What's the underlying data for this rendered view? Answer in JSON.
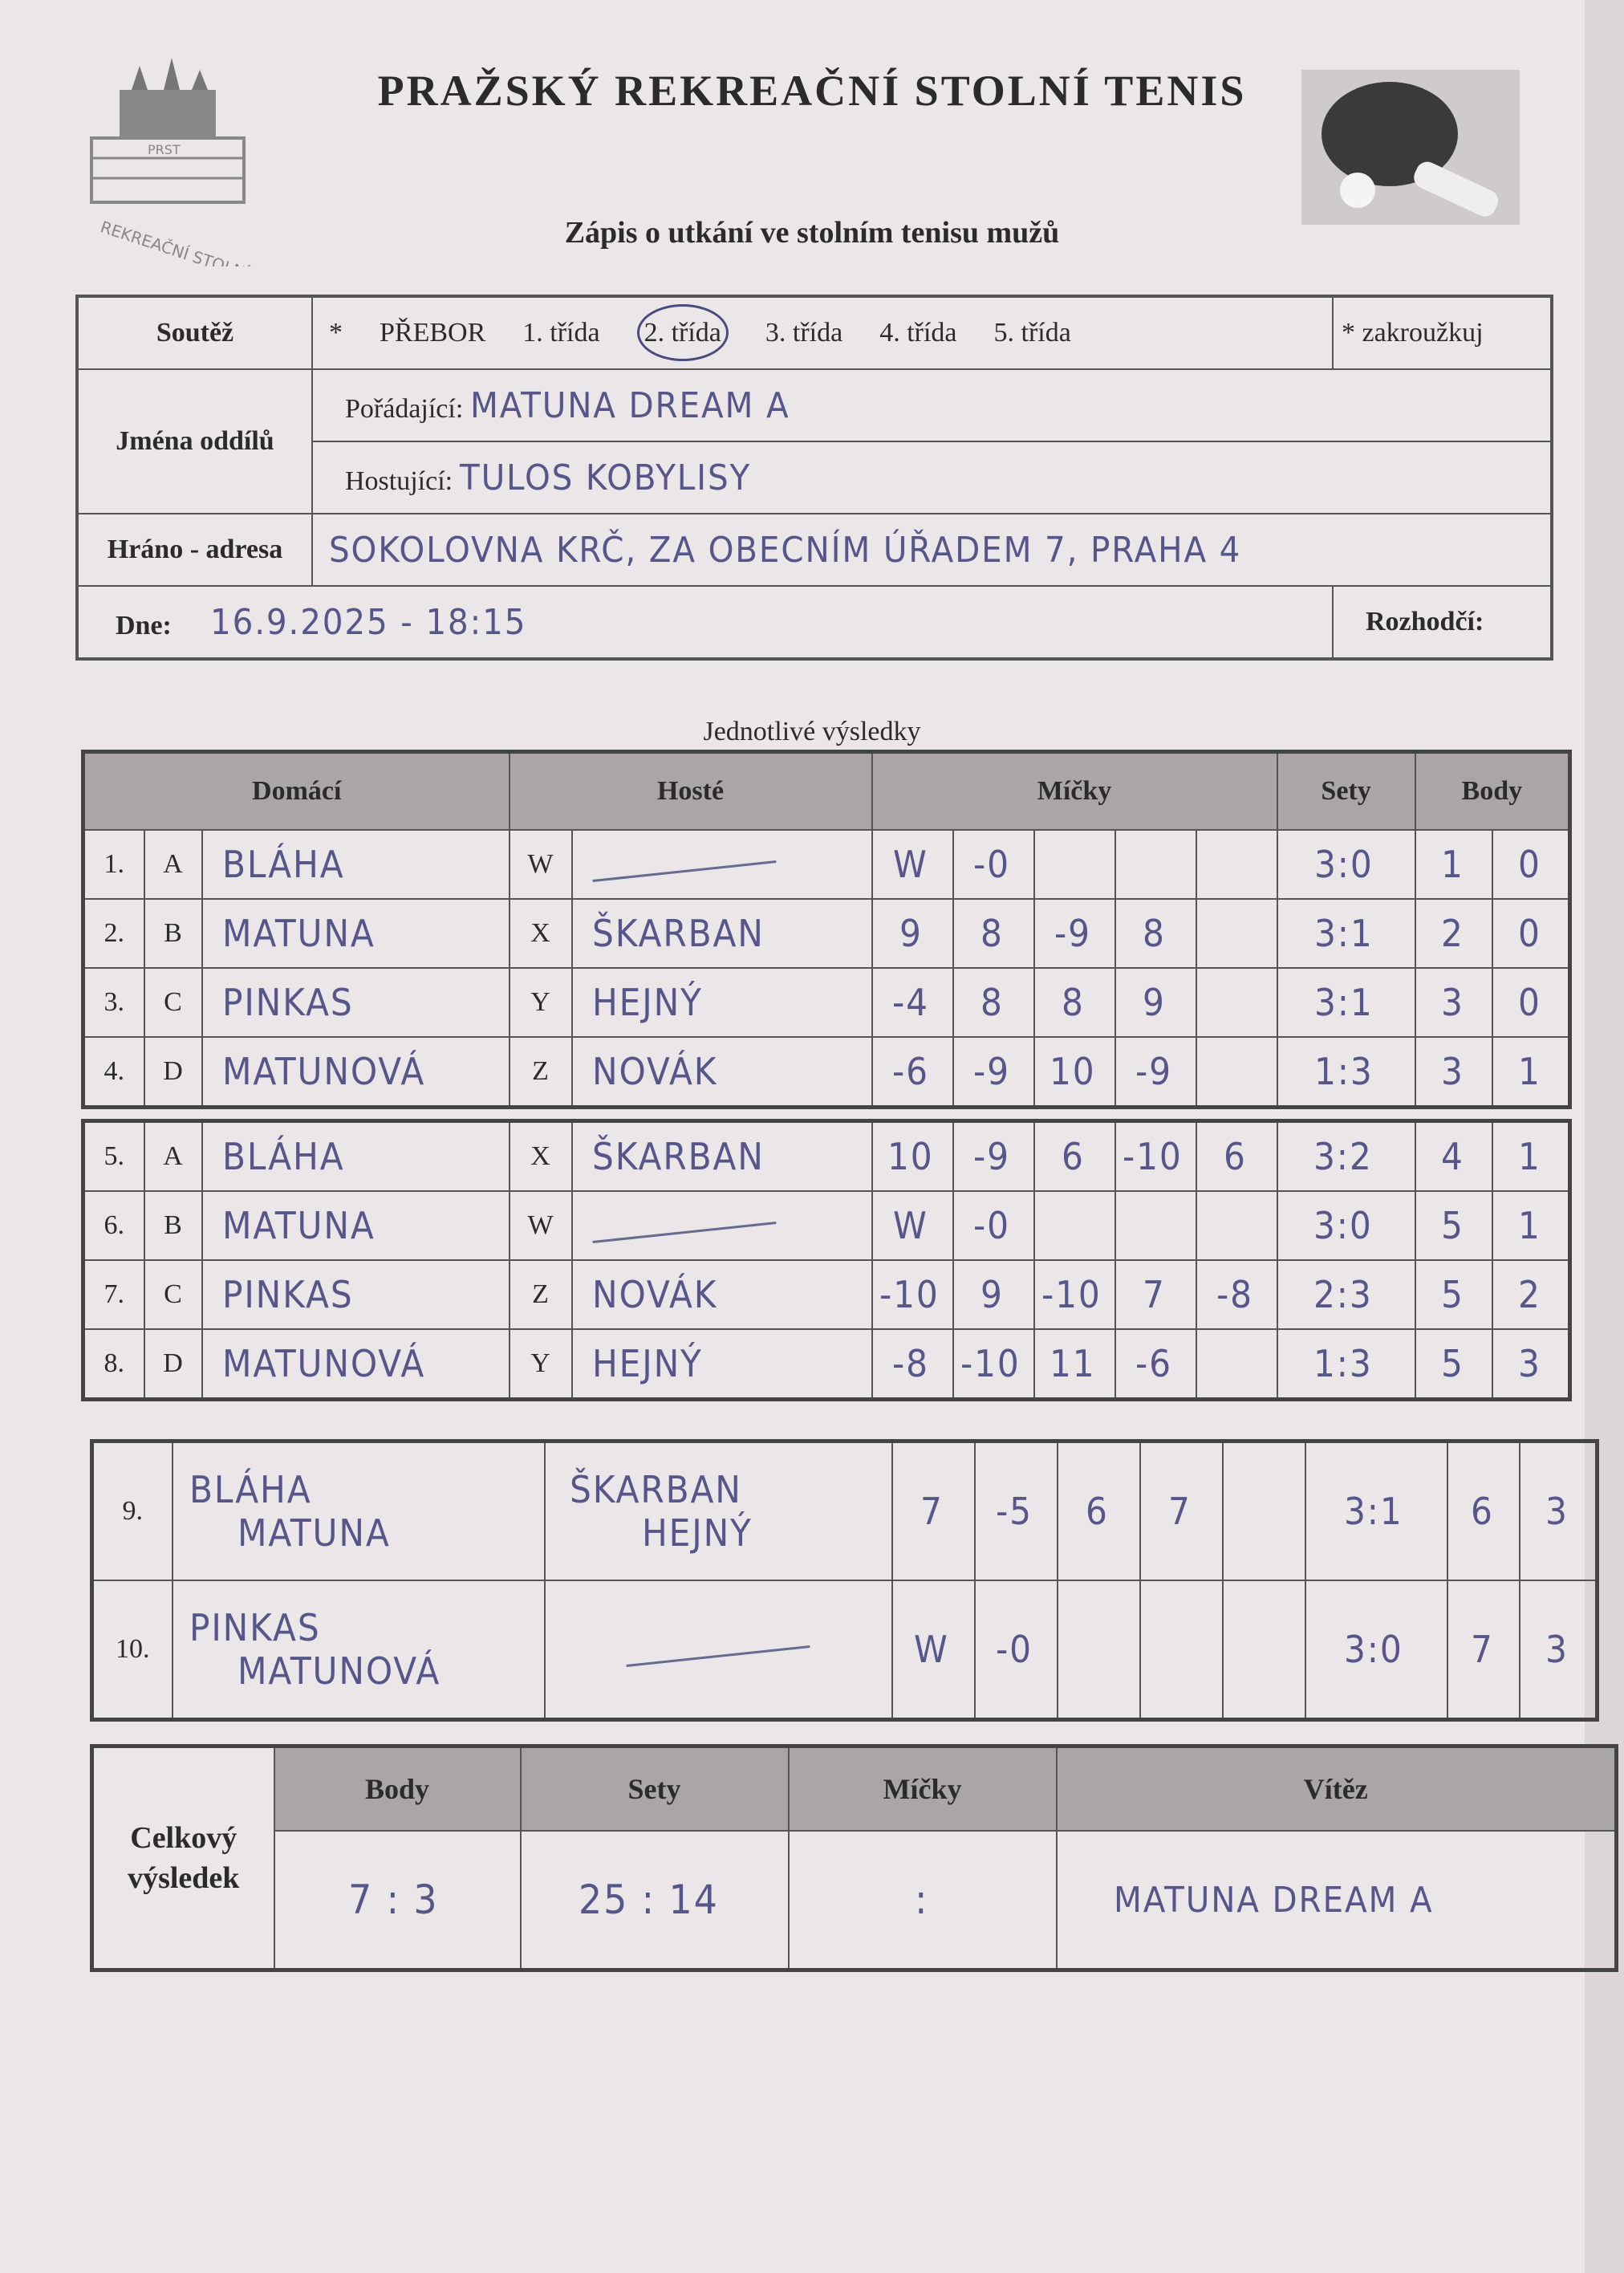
{
  "header": {
    "title": "PRAŽSKÝ REKREAČNÍ STOLNÍ TENIS",
    "subtitle": "Zápis o utkání ve stolním tenisu mužů",
    "logo_text": "PRST PRAŽSKÝ REKREAČNÍ STOLNÍ TENIS"
  },
  "info": {
    "competition_label": "Soutěž",
    "competition_options": [
      "*",
      "PŘEBOR",
      "1. třída",
      "2. třída",
      "3. třída",
      "4. třída",
      "5. třída"
    ],
    "competition_selected": "2. třída",
    "circle_note": "* zakroužkuj",
    "clubs_label": "Jména oddílů",
    "home_label": "Pořádající:",
    "home_value": "MATUNA DREAM A",
    "guest_label": "Hostující:",
    "guest_value": "TULOS KOBYLISY",
    "venue_label": "Hráno - adresa",
    "venue_value": "SOKOLOVNA KRČ, ZA OBECNÍM ÚŘADEM 7, PRAHA 4",
    "date_label": "Dne:",
    "date_value": "16.9.2025 - 18:15",
    "referee_label": "Rozhodčí:",
    "referee_value": ""
  },
  "results": {
    "title": "Jednotlivé výsledky",
    "columns": {
      "home": "Domácí",
      "guest": "Hosté",
      "balls": "Míčky",
      "sets": "Sety",
      "points": "Body"
    },
    "singles": [
      {
        "no": "1.",
        "hl": "A",
        "home": "BLÁHA",
        "gl": "W",
        "guest": "",
        "walkover": true,
        "balls": [
          "W",
          "-0",
          "",
          "",
          ""
        ],
        "sets": "3:0",
        "points": [
          "1",
          "0"
        ]
      },
      {
        "no": "2.",
        "hl": "B",
        "home": "MATUNA",
        "gl": "X",
        "guest": "ŠKARBAN",
        "walkover": false,
        "balls": [
          "9",
          "8",
          "-9",
          "8",
          ""
        ],
        "sets": "3:1",
        "points": [
          "2",
          "0"
        ]
      },
      {
        "no": "3.",
        "hl": "C",
        "home": "PINKAS",
        "gl": "Y",
        "guest": "HEJNÝ",
        "walkover": false,
        "balls": [
          "-4",
          "8",
          "8",
          "9",
          ""
        ],
        "sets": "3:1",
        "points": [
          "3",
          "0"
        ]
      },
      {
        "no": "4.",
        "hl": "D",
        "home": "MATUNOVÁ",
        "gl": "Z",
        "guest": "NOVÁK",
        "walkover": false,
        "balls": [
          "-6",
          "-9",
          "10",
          "-9",
          ""
        ],
        "sets": "1:3",
        "points": [
          "3",
          "1"
        ]
      },
      {
        "no": "5.",
        "hl": "A",
        "home": "BLÁHA",
        "gl": "X",
        "guest": "ŠKARBAN",
        "walkover": false,
        "balls": [
          "10",
          "-9",
          "6",
          "-10",
          "6"
        ],
        "sets": "3:2",
        "points": [
          "4",
          "1"
        ]
      },
      {
        "no": "6.",
        "hl": "B",
        "home": "MATUNA",
        "gl": "W",
        "guest": "",
        "walkover": true,
        "balls": [
          "W",
          "-0",
          "",
          "",
          ""
        ],
        "sets": "3:0",
        "points": [
          "5",
          "1"
        ]
      },
      {
        "no": "7.",
        "hl": "C",
        "home": "PINKAS",
        "gl": "Z",
        "guest": "NOVÁK",
        "walkover": false,
        "balls": [
          "-10",
          "9",
          "-10",
          "7",
          "-8"
        ],
        "sets": "2:3",
        "points": [
          "5",
          "2"
        ]
      },
      {
        "no": "8.",
        "hl": "D",
        "home": "MATUNOVÁ",
        "gl": "Y",
        "guest": "HEJNÝ",
        "walkover": false,
        "balls": [
          "-8",
          "-10",
          "11",
          "-6",
          ""
        ],
        "sets": "1:3",
        "points": [
          "5",
          "3"
        ]
      }
    ],
    "doubles": [
      {
        "no": "9.",
        "home": [
          "BLÁHA",
          "MATUNA"
        ],
        "guest": [
          "ŠKARBAN",
          "HEJNÝ"
        ],
        "walkover": false,
        "balls": [
          "7",
          "-5",
          "6",
          "7",
          ""
        ],
        "sets": "3:1",
        "points": [
          "6",
          "3"
        ]
      },
      {
        "no": "10.",
        "home": [
          "PINKAS",
          "MATUNOVÁ"
        ],
        "guest": [],
        "walkover": true,
        "balls": [
          "W",
          "-0",
          "",
          "",
          ""
        ],
        "sets": "3:0",
        "points": [
          "7",
          "3"
        ]
      }
    ]
  },
  "total": {
    "label": "Celkový výsledek",
    "points_label": "Body",
    "points_value": "7 : 3",
    "sets_label": "Sety",
    "sets_value": "25 : 14",
    "balls_label": "Míčky",
    "balls_value": ":",
    "winner_label": "Vítěz",
    "winner_value": "MATUNA DREAM A"
  },
  "colors": {
    "ink": "#56568a",
    "paper": "#ebe6e7",
    "header_fill": "#aaa6a8"
  }
}
